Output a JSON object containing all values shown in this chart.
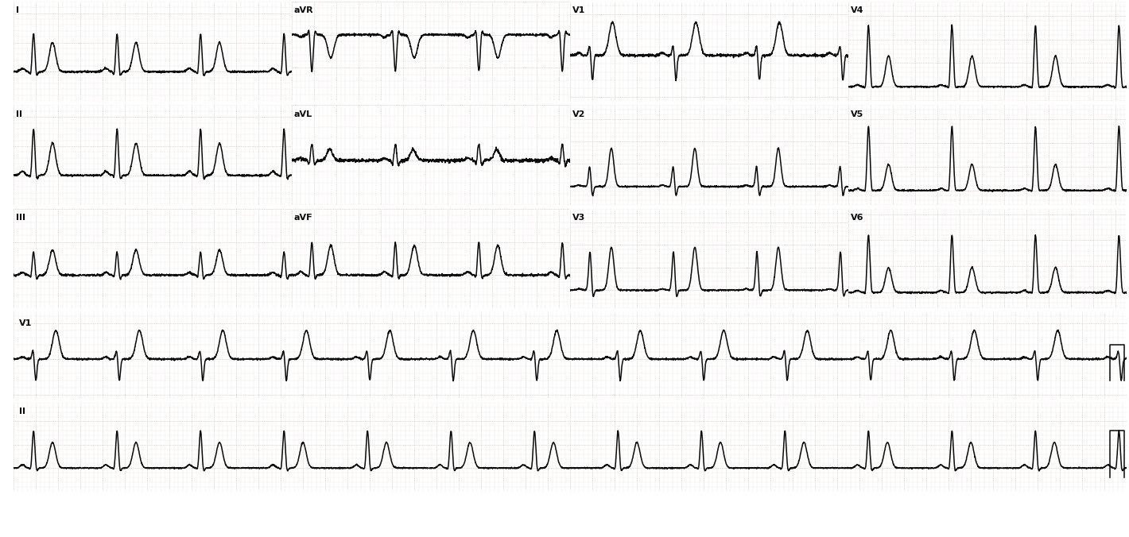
{
  "bg_color": "#ffffff",
  "grid_dot_color": "#c8c0b8",
  "grid_major_color": "#b8b0a8",
  "line_color": "#0a0a0a",
  "text_color": "#0a0a0a",
  "fig_width": 14.2,
  "fig_height": 6.76,
  "dpi": 100,
  "heart_rate": 80,
  "sample_rate": 500,
  "row_leads_1": [
    "I",
    "aVR",
    "V1",
    "V4"
  ],
  "row_leads_2": [
    "II",
    "aVL",
    "V2",
    "V5"
  ],
  "row_leads_3": [
    "III",
    "aVF",
    "V3",
    "V6"
  ],
  "rhythm_lead_4": "V1",
  "rhythm_lead_5": "II",
  "lw": 1.1,
  "label_fontsize": 8
}
